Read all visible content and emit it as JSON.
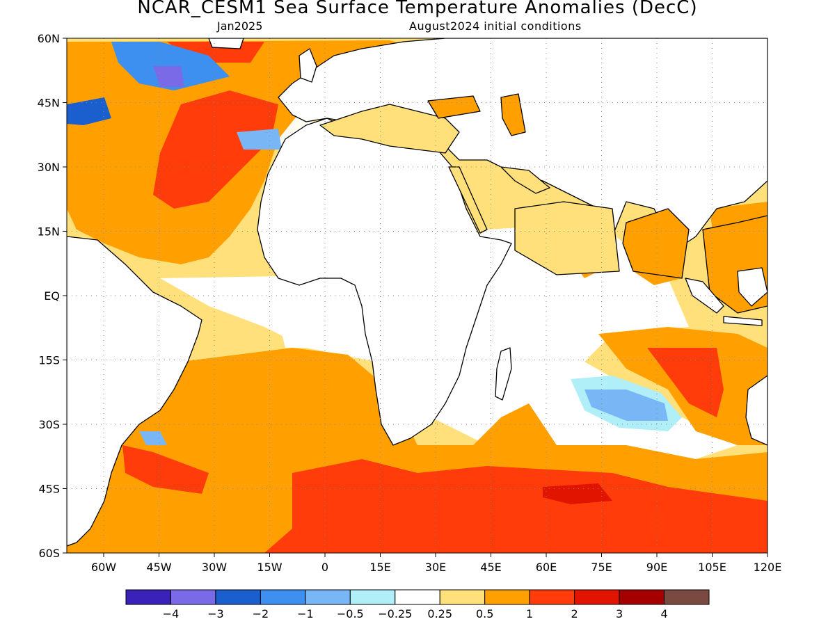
{
  "title": "NCAR_CESM1 Sea Surface Temperature Anomalies (DecC)",
  "subtitle_left": "Jan2025",
  "subtitle_right": "August2024 initial conditions",
  "map": {
    "lon_range": [
      -70,
      120
    ],
    "lat_range": [
      -60,
      60
    ],
    "lat_ticks": [
      {
        "value": 60,
        "label": "60N"
      },
      {
        "value": 45,
        "label": "45N"
      },
      {
        "value": 30,
        "label": "30N"
      },
      {
        "value": 15,
        "label": "15N"
      },
      {
        "value": 0,
        "label": "EQ"
      },
      {
        "value": -15,
        "label": "15S"
      },
      {
        "value": -30,
        "label": "30S"
      },
      {
        "value": -45,
        "label": "45S"
      },
      {
        "value": -60,
        "label": "60S"
      }
    ],
    "lon_ticks": [
      {
        "value": -60,
        "label": "60W"
      },
      {
        "value": -45,
        "label": "45W"
      },
      {
        "value": -30,
        "label": "30W"
      },
      {
        "value": -15,
        "label": "15W"
      },
      {
        "value": 0,
        "label": "0"
      },
      {
        "value": 15,
        "label": "15E"
      },
      {
        "value": 30,
        "label": "30E"
      },
      {
        "value": 45,
        "label": "45E"
      },
      {
        "value": 60,
        "label": "60E"
      },
      {
        "value": 75,
        "label": "75E"
      },
      {
        "value": 90,
        "label": "90E"
      },
      {
        "value": 105,
        "label": "105E"
      },
      {
        "value": 120,
        "label": "120E"
      }
    ],
    "grid": "dotted"
  },
  "colorbar": {
    "colors": [
      "#3a22b8",
      "#7b6ae8",
      "#1b5fce",
      "#3d8ff0",
      "#78b6f5",
      "#b0eef8",
      "#ffffff",
      "#ffe07a",
      "#ffa000",
      "#ff3c0a",
      "#e11400",
      "#a50000",
      "#7a4a40"
    ],
    "labels": [
      "−4",
      "−3",
      "−2",
      "−1",
      "−0.5",
      "−0.25",
      "0.25",
      "0.5",
      "1",
      "2",
      "3",
      "4"
    ]
  }
}
